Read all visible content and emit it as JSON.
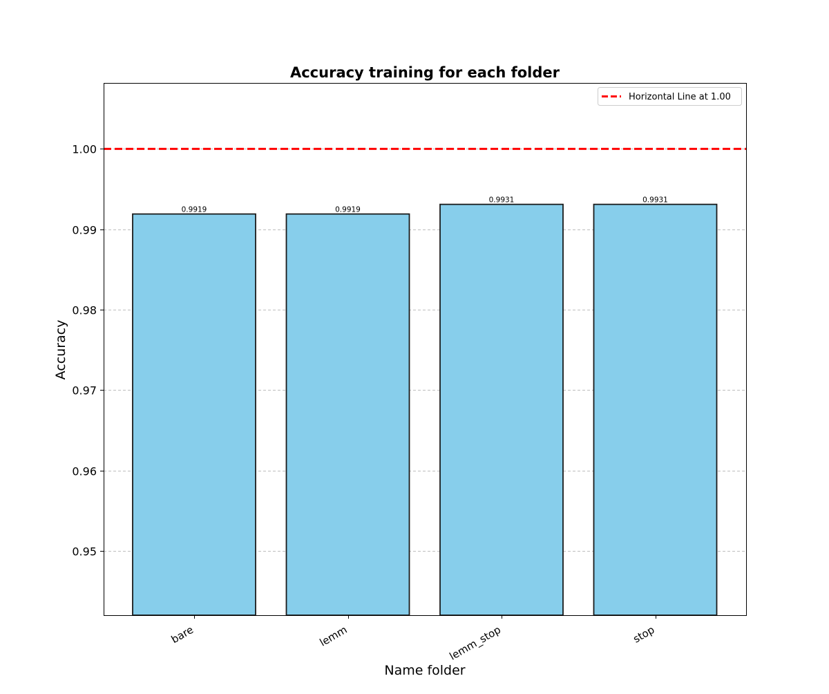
{
  "chart_data": {
    "type": "bar",
    "title": "Accuracy training for each folder",
    "xlabel": "Name folder",
    "ylabel": "Accuracy",
    "categories": [
      "bare",
      "lemm",
      "lemm_stop",
      "stop"
    ],
    "values": [
      0.9919,
      0.9919,
      0.9931,
      0.9931
    ],
    "value_labels": [
      "0.9919",
      "0.9919",
      "0.9931",
      "0.9931"
    ],
    "ylim": [
      0.942,
      1.0082
    ],
    "yticks": [
      0.95,
      0.96,
      0.97,
      0.98,
      0.99,
      1.0
    ],
    "ytick_labels": [
      "0.95",
      "0.96",
      "0.97",
      "0.98",
      "0.99",
      "1.00"
    ],
    "grid": "y-dashed",
    "bar_color": "#87ceeb",
    "bar_edge_color": "#1a1a1a",
    "reference_line": {
      "y": 1.0,
      "label": "Horizontal Line at 1.00",
      "color": "#ff0000",
      "style": "dashed"
    },
    "legend_position": "top-right"
  }
}
